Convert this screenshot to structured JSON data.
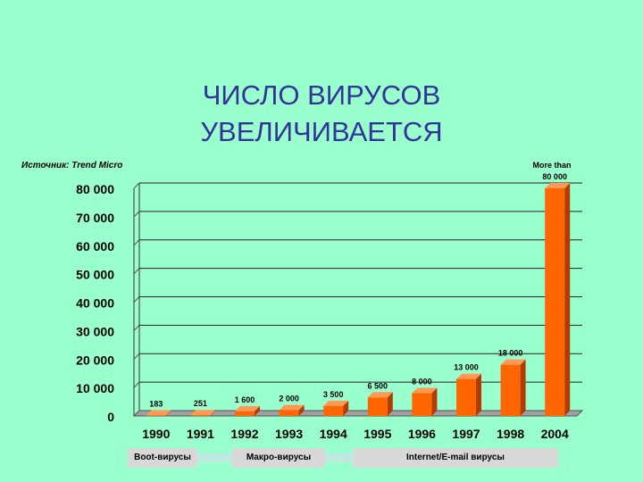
{
  "title": {
    "line1": "ЧИСЛО ВИРУСОВ",
    "line2": "УВЕЛИЧИВАЕТСЯ"
  },
  "source": "Источник: Trend Micro",
  "note": "More than",
  "legend": {
    "boot": "Boot-вирусы",
    "macro": "Макро-вирусы",
    "internet": "Internet/E-mail вирусы"
  },
  "colors": {
    "background": "#99ffcc",
    "title": "#333399",
    "bar_front": "#ff6600",
    "bar_side": "#b23c00",
    "bar_top": "#ff9955"
  },
  "chart_data": {
    "type": "bar",
    "categories": [
      "1990",
      "1991",
      "1992",
      "1993",
      "1994",
      "1995",
      "1996",
      "1997",
      "1998",
      "2004"
    ],
    "values": [
      183,
      251,
      1600,
      2000,
      3500,
      6500,
      8000,
      13000,
      18000,
      80000
    ],
    "data_labels": [
      "183",
      "251",
      "1 600",
      "2 000",
      "3 500",
      "6 500",
      "8 000",
      "13 000",
      "18 000",
      "80 000"
    ],
    "yticks": [
      "0",
      "10 000",
      "20 000",
      "30 000",
      "40 000",
      "50 000",
      "60 000",
      "70 000",
      "80 000"
    ],
    "ytick_values": [
      0,
      10000,
      20000,
      30000,
      40000,
      50000,
      60000,
      70000,
      80000
    ],
    "ylim": [
      0,
      80000
    ],
    "grid": true,
    "title": "",
    "xlabel": "",
    "ylabel": ""
  }
}
